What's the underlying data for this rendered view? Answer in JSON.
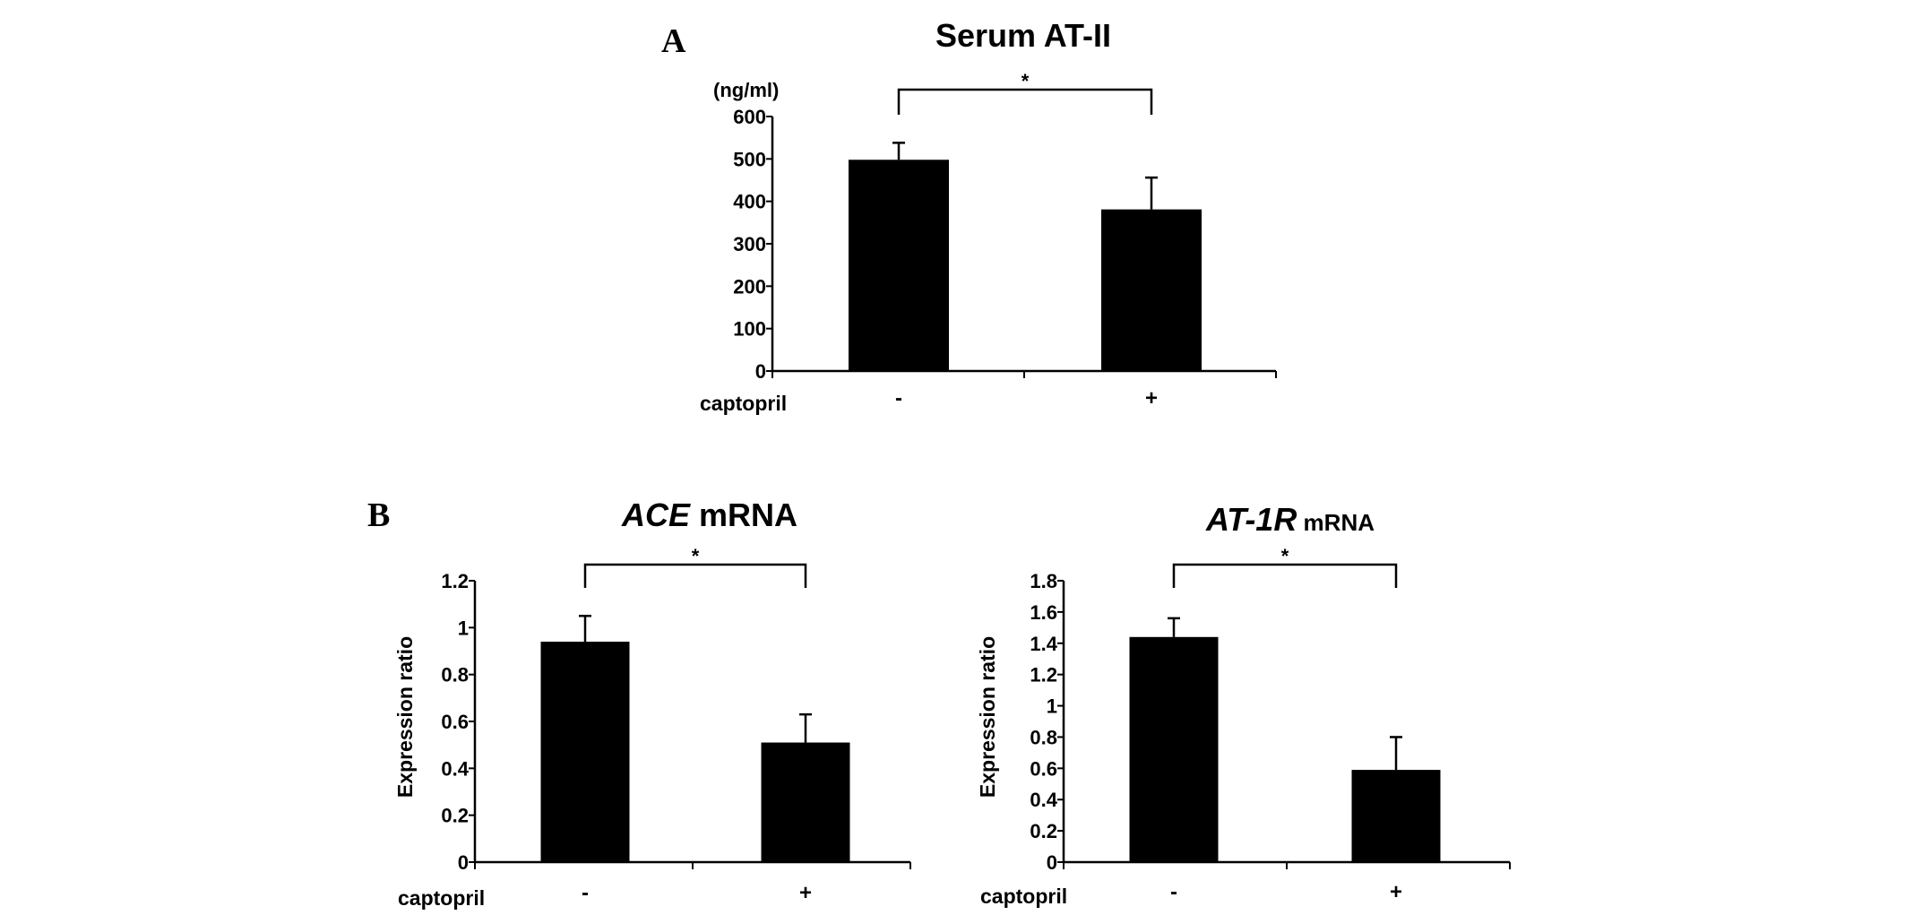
{
  "figure": {
    "panel_a_letter": "A",
    "panel_b_letter": "B"
  },
  "chart_data": [
    {
      "type": "bar",
      "title": "Serum AT-II",
      "unit": "(ng/ml)",
      "ylabel": "",
      "xlabel": "captopril",
      "categories": [
        "-",
        "+"
      ],
      "values": [
        498,
        381
      ],
      "errors": [
        40,
        75
      ],
      "ylim": [
        0,
        600
      ],
      "yticks": [
        0,
        100,
        200,
        300,
        400,
        500,
        600
      ],
      "significance": "*",
      "grid": false
    },
    {
      "type": "bar",
      "title_italic": "ACE",
      "title_rest": " mRNA",
      "ylabel": "Expression ratio",
      "xlabel": "captopril",
      "categories": [
        "-",
        "+"
      ],
      "values": [
        0.94,
        0.51
      ],
      "errors": [
        0.11,
        0.12
      ],
      "ylim": [
        0,
        1.2
      ],
      "yticks": [
        "0",
        "0.2",
        "0.4",
        "0.6",
        "0.8",
        "1",
        "1.2"
      ],
      "significance": "*",
      "grid": false
    },
    {
      "type": "bar",
      "title_italic": "AT-1R",
      "title_rest": " mRNA",
      "ylabel": "Expression ratio",
      "xlabel": "captopril",
      "categories": [
        "-",
        "+"
      ],
      "values": [
        1.44,
        0.59
      ],
      "errors": [
        0.12,
        0.21
      ],
      "ylim": [
        0,
        1.8
      ],
      "yticks": [
        "0",
        "0.2",
        "0.4",
        "0.6",
        "0.8",
        "1",
        "1.2",
        "1.4",
        "1.6",
        "1.8"
      ],
      "significance": "*",
      "grid": false
    }
  ]
}
